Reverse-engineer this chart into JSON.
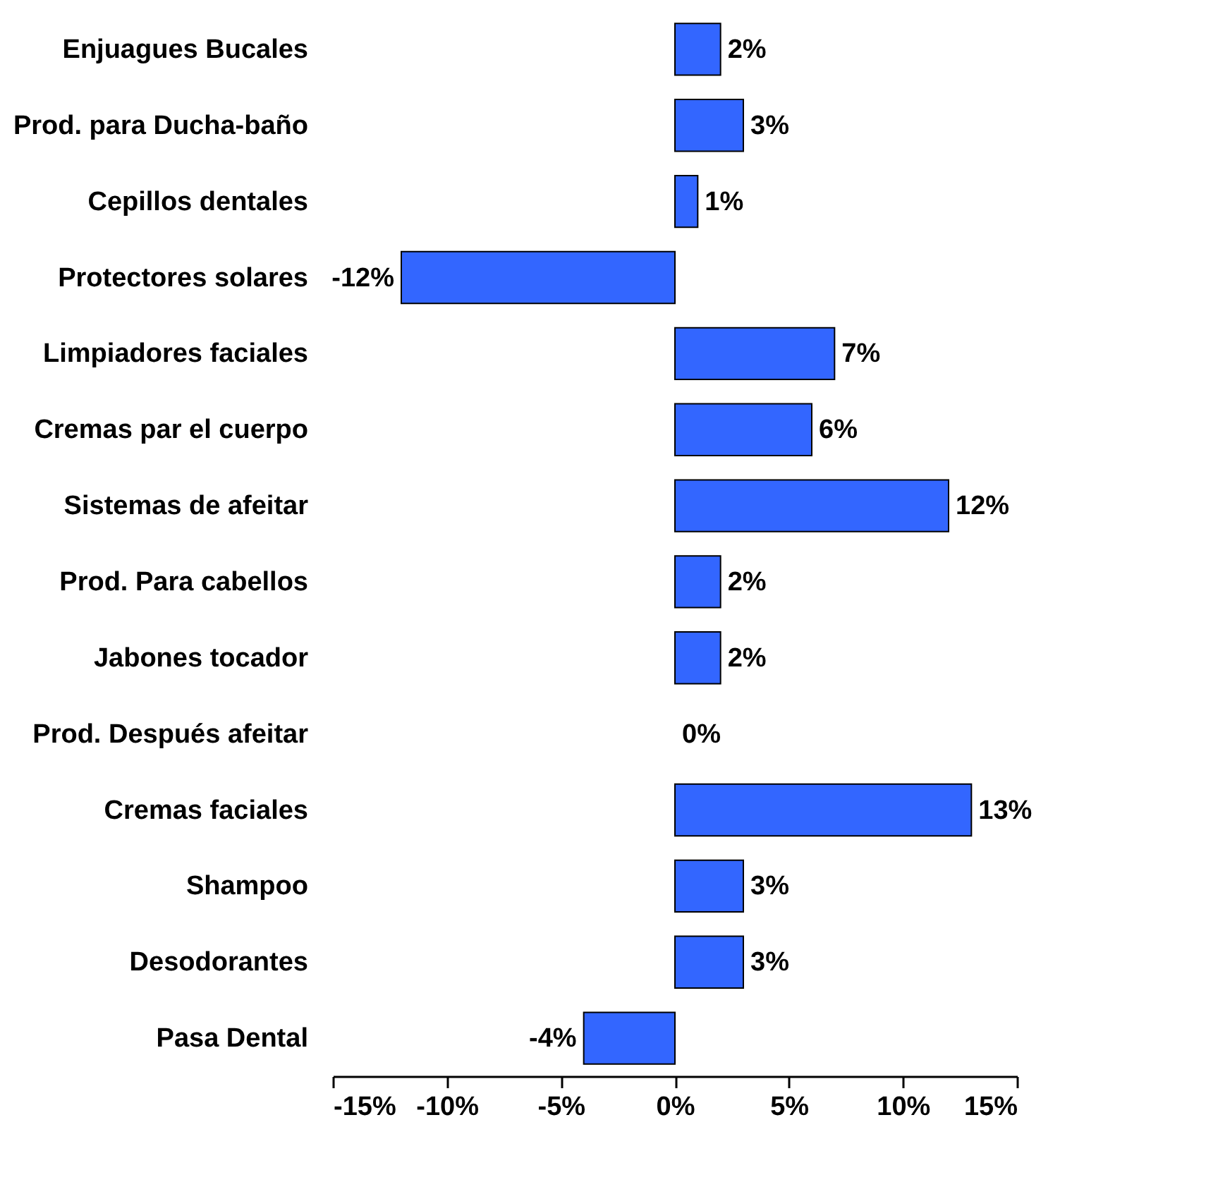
{
  "chart_data": {
    "type": "bar",
    "orientation": "horizontal",
    "categories": [
      "Enjuagues Bucales",
      "Prod. para Ducha-baño",
      "Cepillos dentales",
      "Protectores solares",
      "Limpiadores faciales",
      "Cremas par el cuerpo",
      "Sistemas de afeitar",
      "Prod. Para cabellos",
      "Jabones tocador",
      "Prod. Después afeitar",
      "Cremas faciales",
      "Shampoo",
      "Desodorantes",
      "Pasa Dental"
    ],
    "values": [
      2,
      3,
      1,
      -12,
      7,
      6,
      12,
      2,
      2,
      0,
      13,
      3,
      3,
      -4
    ],
    "value_labels": [
      "2%",
      "3%",
      "1%",
      "-12%",
      "7%",
      "6%",
      "12%",
      "2%",
      "2%",
      "0%",
      "13%",
      "3%",
      "3%",
      "-4%"
    ],
    "color": "#3366ff",
    "xlim": [
      -15,
      15
    ],
    "xticks": [
      {
        "value": -15,
        "label": "-15%"
      },
      {
        "value": -10,
        "label": "-10%"
      },
      {
        "value": -5,
        "label": "-5%"
      },
      {
        "value": 0,
        "label": "0%"
      },
      {
        "value": 5,
        "label": "5%"
      },
      {
        "value": 10,
        "label": "10%"
      },
      {
        "value": 15,
        "label": "15%"
      }
    ],
    "grid": false
  }
}
